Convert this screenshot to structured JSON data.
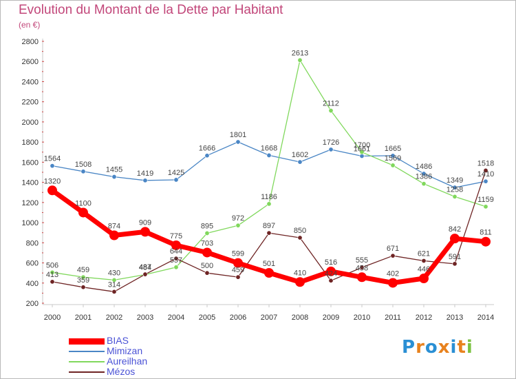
{
  "title": "Evolution du Montant de la Dette par Habitant",
  "subtitle": "(en €)",
  "logo": {
    "text": "Proxiti",
    "letters": [
      {
        "ch": "P",
        "color": "#2a8fd4"
      },
      {
        "ch": "r",
        "color": "#e8821e"
      },
      {
        "ch": "o",
        "color": "#2a8fd4"
      },
      {
        "ch": "x",
        "color": "#e8821e"
      },
      {
        "ch": "i",
        "color": "#2a8fd4"
      },
      {
        "ch": "t",
        "color": "#e8821e"
      },
      {
        "ch": "i",
        "color": "#7cc242"
      }
    ]
  },
  "chart_data": {
    "type": "line",
    "title": "Evolution du Montant de la Dette par Habitant",
    "subtitle": "(en €)",
    "x": [
      "2000",
      "2001",
      "2002",
      "2003",
      "2004",
      "2005",
      "2006",
      "2007",
      "2008",
      "2009",
      "2010",
      "2011",
      "2012",
      "2013",
      "2014"
    ],
    "ylim": [
      200,
      2800
    ],
    "yticks": [
      200,
      400,
      600,
      800,
      1000,
      1200,
      1400,
      1600,
      1800,
      2000,
      2200,
      2400,
      2600,
      2800
    ],
    "grid": false,
    "legend_position": "bottom-left",
    "series": [
      {
        "name": "BIAS",
        "color": "#ff0000",
        "values": [
          1320,
          1100,
          874,
          909,
          775,
          703,
          599,
          501,
          410,
          516,
          458,
          402,
          446,
          842,
          811
        ],
        "labels": [
          "1320",
          "1100",
          "874",
          "909",
          "775",
          "703",
          "599",
          "501",
          "410",
          "516",
          "458",
          "402",
          "446",
          "842",
          "811"
        ]
      },
      {
        "name": "Mimizan",
        "color": "#4a86c5",
        "values": [
          1564,
          1508,
          1455,
          1419,
          1425,
          1666,
          1801,
          1668,
          1602,
          1726,
          1661,
          1665,
          1486,
          1349,
          1410
        ],
        "labels": [
          "1564",
          "1508",
          "1455",
          "1419",
          "1425",
          "1666",
          "1801",
          "1668",
          "1602",
          "1726",
          "1661",
          "1665",
          "1486",
          "1349",
          "1410"
        ]
      },
      {
        "name": "Aureilhan",
        "color": "#80d85c",
        "values": [
          506,
          459,
          430,
          484,
          557,
          895,
          972,
          1186,
          2613,
          2112,
          1700,
          1569,
          1386,
          1258,
          1159
        ],
        "labels": [
          "506",
          "459",
          "430",
          "484",
          "557",
          "895",
          "972",
          "1186",
          "2613",
          "2112",
          "1700",
          "1569",
          "1386",
          "1258",
          "1159"
        ]
      },
      {
        "name": "Mézos",
        "color": "#6e2424",
        "values": [
          413,
          359,
          314,
          487,
          644,
          500,
          459,
          897,
          850,
          424,
          555,
          671,
          621,
          591,
          1518
        ],
        "labels": [
          "413",
          "359",
          "314",
          "487",
          "644",
          "500",
          "459",
          "897",
          "850",
          "424",
          "555",
          "671",
          "621",
          "591",
          "1518"
        ]
      }
    ]
  }
}
